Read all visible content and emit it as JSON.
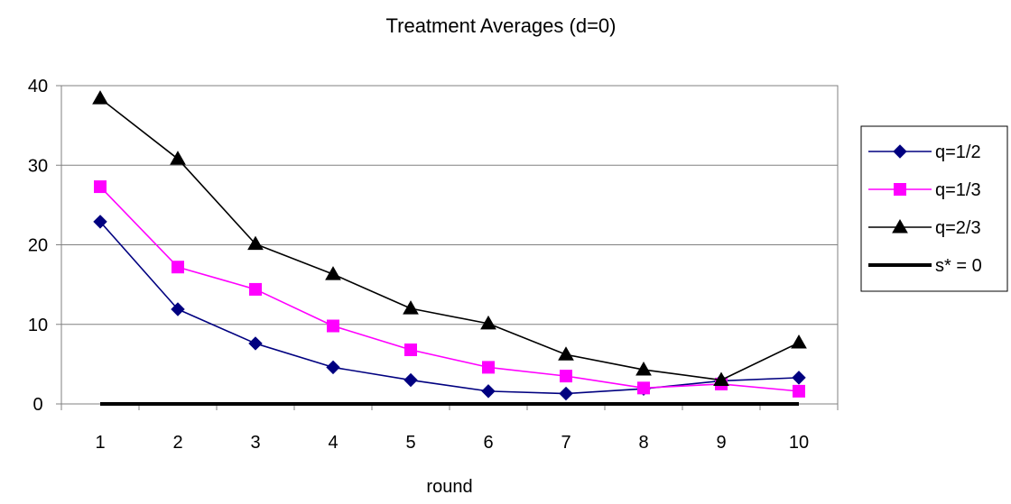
{
  "chart_data": {
    "type": "line",
    "title": "Treatment Averages (d=0)",
    "xlabel": "round",
    "ylabel": "",
    "categories": [
      "1",
      "2",
      "3",
      "4",
      "5",
      "6",
      "7",
      "8",
      "9",
      "10"
    ],
    "ylim": [
      0,
      40
    ],
    "yticks": [
      "0",
      "10",
      "20",
      "30",
      "40"
    ],
    "grid": true,
    "legend_position": "right",
    "series": [
      {
        "name": "q=1/2",
        "color": "#000080",
        "marker": "diamond",
        "values": [
          22.9,
          11.9,
          7.6,
          4.6,
          3.0,
          1.6,
          1.3,
          1.9,
          2.9,
          3.3
        ]
      },
      {
        "name": "q=1/3",
        "color": "#ff00ff",
        "marker": "square",
        "values": [
          27.3,
          17.2,
          14.4,
          9.8,
          6.8,
          4.6,
          3.5,
          2.0,
          2.5,
          1.6
        ]
      },
      {
        "name": "q=2/3",
        "color": "#000000",
        "marker": "triangle",
        "values": [
          38.4,
          30.8,
          20.1,
          16.3,
          12.0,
          10.1,
          6.2,
          4.3,
          3.0,
          7.7
        ]
      },
      {
        "name": "s* = 0",
        "color": "#000000",
        "marker": "none",
        "line_style": "thick",
        "values": [
          0,
          0,
          0,
          0,
          0,
          0,
          0,
          0,
          0,
          0
        ]
      }
    ]
  }
}
